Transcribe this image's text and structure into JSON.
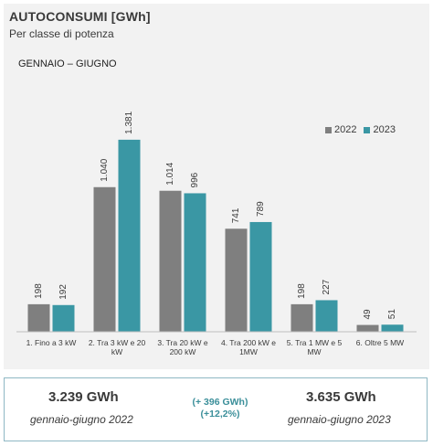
{
  "title": "AUTOCONSUMI [GWh]",
  "subtitle": "Per classe di potenza",
  "period": "GENNAIO – GIUGNO",
  "colors": {
    "2022": "#7f7f7f",
    "2023": "#3a97a4"
  },
  "chart_data": {
    "type": "bar",
    "categories": [
      "1. Fino a 3 kW",
      "2. Tra 3 kW e 20 kW",
      "3. Tra 20 kW e 200 kW",
      "4. Tra 200 kW e 1MW",
      "5. Tra 1 MW e 5 MW",
      "6. Oltre 5 MW"
    ],
    "category_lines": [
      [
        "1. Fino a 3 kW"
      ],
      [
        "2. Tra 3 kW e 20",
        "kW"
      ],
      [
        "3. Tra 20 kW e",
        "200 kW"
      ],
      [
        "4. Tra 200 kW e",
        "1MW"
      ],
      [
        "5. Tra 1 MW e 5",
        "MW"
      ],
      [
        "6. Oltre 5 MW"
      ]
    ],
    "series": [
      {
        "name": "2022",
        "values": [
          198,
          1040,
          1014,
          741,
          198,
          49
        ],
        "labels": [
          "198",
          "1.040",
          "1.014",
          "741",
          "198",
          "49"
        ]
      },
      {
        "name": "2023",
        "values": [
          192,
          1381,
          996,
          789,
          227,
          51
        ],
        "labels": [
          "192",
          "1.381",
          "996",
          "789",
          "227",
          "51"
        ]
      }
    ],
    "ylim": [
      0,
      1400
    ],
    "grid": false,
    "legend": "top-right"
  },
  "summary": {
    "left_value": "3.239 GWh",
    "left_label": "gennaio-giugno 2022",
    "delta_line1": "(+ 396 GWh)",
    "delta_line2": "(+12,2%)",
    "right_value": "3.635 GWh",
    "right_label": "gennaio-giugno 2023"
  }
}
